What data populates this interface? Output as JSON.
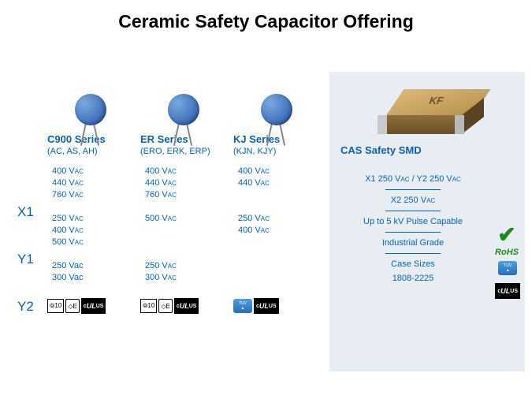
{
  "title": "Ceramic Safety Capacitor Offering",
  "rowLabels": {
    "x1": "X1",
    "y1": "Y1",
    "y2": "Y2"
  },
  "cols": [
    {
      "title": "C900 Series",
      "sub": "(AC, AS, AH)",
      "x1": [
        "400 V",
        "440 V",
        "760 V"
      ],
      "y1": [
        "250 V",
        "400 V",
        "500 V"
      ],
      "y2": [
        "250 Vac",
        "300 Vac"
      ],
      "y2plain": true
    },
    {
      "title": "ER Series",
      "sub": "(ERO, ERK, ERP)",
      "x1": [
        "400 V",
        "440 V",
        "760 V"
      ],
      "y1": [
        "500 V"
      ],
      "y2": [
        "250 V",
        "300 V"
      ]
    },
    {
      "title": "KJ Series",
      "sub": "(KJN, KJY)",
      "x1": [
        "400 V",
        "440 V"
      ],
      "y1": [
        "250 V",
        "400 V"
      ],
      "y2": []
    }
  ],
  "right": {
    "title": "CAS Safety SMD",
    "spec1a": "X1 250 V",
    "spec1b": " /  Y2 250 V",
    "spec2": "X2 250 V",
    "spec3": "Up to 5 kV Pulse Capable",
    "spec4": "Industrial Grade",
    "spec5": "Case Sizes",
    "spec6": "1808-2225",
    "rohs": "RoHS"
  },
  "ac": "AC"
}
